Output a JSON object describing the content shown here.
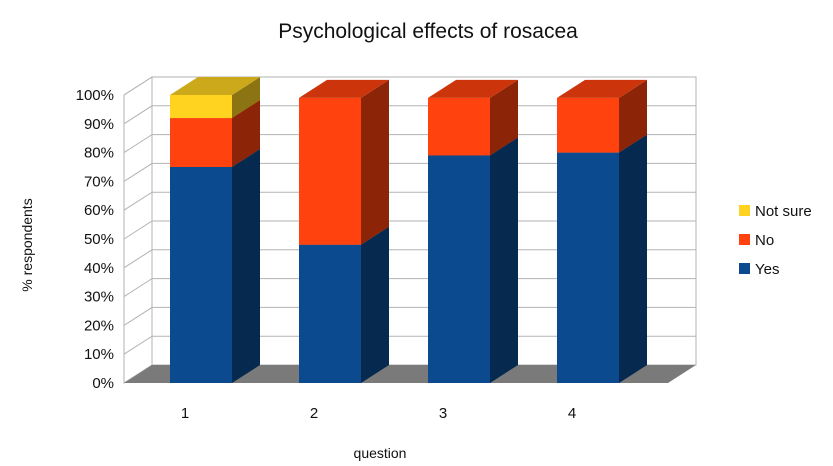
{
  "chart_data": {
    "type": "bar",
    "stacked": true,
    "percent": true,
    "three_d": true,
    "title": "Psychological effects of rosacea",
    "xlabel": "question",
    "ylabel": "% respondents",
    "categories": [
      "1",
      "2",
      "3",
      "4"
    ],
    "ylim": [
      0,
      100
    ],
    "yticks": [
      "0%",
      "10%",
      "20%",
      "30%",
      "40%",
      "50%",
      "60%",
      "70%",
      "80%",
      "90%",
      "100%"
    ],
    "grid": true,
    "legend_position": "right",
    "series": [
      {
        "name": "Yes",
        "values": [
          75,
          48,
          79,
          80
        ],
        "color": "#0b4a8f"
      },
      {
        "name": "No",
        "values": [
          17,
          51,
          20,
          19
        ],
        "color": "#ff420e"
      },
      {
        "name": "Not sure",
        "values": [
          8,
          0,
          0,
          0
        ],
        "color": "#ffd320"
      }
    ],
    "legend_order": [
      "Not sure",
      "No",
      "Yes"
    ]
  }
}
